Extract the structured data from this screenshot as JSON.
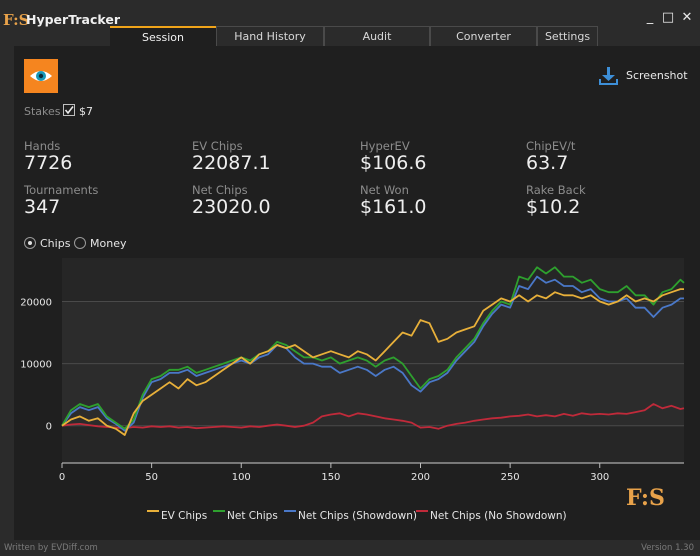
{
  "app": {
    "logo": "F:S",
    "title": "HyperTracker"
  },
  "window_controls": {
    "minimize": "_",
    "maximize": "□",
    "close": "✕"
  },
  "tabs": [
    {
      "label": "Session",
      "active": true
    },
    {
      "label": "Hand History",
      "active": false
    },
    {
      "label": "Audit",
      "active": false
    },
    {
      "label": "Converter",
      "active": false
    },
    {
      "label": "Settings",
      "active": false
    }
  ],
  "toolbar": {
    "eye_icon": "eye-icon",
    "screenshot_label": "Screenshot"
  },
  "stakes": {
    "label": "Stakes",
    "checked": true,
    "value": "$7"
  },
  "stats": {
    "hands": {
      "label": "Hands",
      "value": "7726"
    },
    "ev_chips": {
      "label": "EV Chips",
      "value": "22087.1"
    },
    "hyperev": {
      "label": "HyperEV",
      "value": "$106.6"
    },
    "chipev_t": {
      "label": "ChipEV/t",
      "value": "63.7"
    },
    "tournaments": {
      "label": "Tournaments",
      "value": "347"
    },
    "net_chips": {
      "label": "Net Chips",
      "value": "23020.0"
    },
    "net_won": {
      "label": "Net Won",
      "value": "$161.0"
    },
    "rake_back": {
      "label": "Rake Back",
      "value": "$10.2"
    }
  },
  "mode": {
    "chips_label": "Chips",
    "money_label": "Money",
    "selected": "Chips"
  },
  "colors": {
    "accent": "#f0a41a",
    "ev": "#e8b03a",
    "net": "#2ea02e",
    "showdown": "#4a78c8",
    "noshowdown": "#c02a3a"
  },
  "chart_data": {
    "type": "line",
    "x_range": [
      0,
      347
    ],
    "y_range": [
      -6000,
      27000
    ],
    "x_ticks": [
      {
        "value": 0,
        "label": "0"
      },
      {
        "value": 50,
        "label": "50"
      },
      {
        "value": 100,
        "label": "100"
      },
      {
        "value": 150,
        "label": "150"
      },
      {
        "value": 200,
        "label": "200"
      },
      {
        "value": 250,
        "label": "250"
      },
      {
        "value": 300,
        "label": "300"
      }
    ],
    "y_ticks": [
      {
        "value": 0,
        "label": "0"
      },
      {
        "value": 10000,
        "label": "10000"
      },
      {
        "value": 20000,
        "label": "20000"
      }
    ],
    "legend_position": "bottom",
    "x": [
      0,
      5,
      10,
      15,
      20,
      25,
      30,
      35,
      40,
      45,
      50,
      55,
      60,
      65,
      70,
      75,
      80,
      85,
      90,
      95,
      100,
      105,
      110,
      115,
      120,
      125,
      130,
      135,
      140,
      145,
      150,
      155,
      160,
      165,
      170,
      175,
      180,
      185,
      190,
      195,
      200,
      205,
      210,
      215,
      220,
      225,
      230,
      235,
      240,
      245,
      250,
      255,
      260,
      265,
      270,
      275,
      280,
      285,
      290,
      295,
      300,
      305,
      310,
      315,
      320,
      325,
      330,
      335,
      340,
      345,
      347
    ],
    "series": [
      {
        "name": "EV Chips",
        "color": "#e8b03a",
        "values": [
          0,
          1000,
          1500,
          800,
          1200,
          0,
          -500,
          -1500,
          2000,
          4000,
          5000,
          6000,
          7000,
          6000,
          7500,
          6500,
          7000,
          8000,
          9000,
          10000,
          11000,
          10000,
          11500,
          12000,
          13000,
          12500,
          13000,
          12000,
          11000,
          11500,
          12000,
          11500,
          11000,
          12000,
          11500,
          10500,
          12000,
          13500,
          15000,
          14500,
          17000,
          16500,
          13500,
          14000,
          15000,
          15500,
          16000,
          18500,
          19500,
          20500,
          20000,
          21000,
          20000,
          21000,
          20500,
          21500,
          21000,
          21000,
          20500,
          21000,
          20000,
          19500,
          20000,
          21000,
          20000,
          20500,
          20000,
          21000,
          21500,
          22000,
          22000
        ]
      },
      {
        "name": "Net Chips",
        "color": "#2ea02e",
        "values": [
          0,
          2500,
          3500,
          3000,
          3500,
          1500,
          500,
          -500,
          1000,
          5000,
          7500,
          8000,
          9000,
          9000,
          9500,
          8500,
          9000,
          9500,
          10000,
          10500,
          11000,
          10500,
          11500,
          12000,
          13500,
          13000,
          12000,
          11000,
          11000,
          10500,
          11000,
          10000,
          10500,
          11000,
          10500,
          9500,
          10500,
          11000,
          10000,
          8000,
          6000,
          7500,
          8000,
          9000,
          11000,
          12500,
          14000,
          16500,
          18500,
          20000,
          19500,
          24000,
          23500,
          25500,
          24500,
          25500,
          24000,
          24000,
          23000,
          23500,
          22000,
          21500,
          21500,
          22500,
          21000,
          21000,
          19500,
          21500,
          22000,
          23500,
          23000
        ]
      },
      {
        "name": "Net Chips (Showdown)",
        "color": "#4a78c8",
        "values": [
          0,
          2000,
          3000,
          2500,
          3000,
          1200,
          300,
          -800,
          500,
          4500,
          7000,
          7500,
          8500,
          8500,
          9000,
          8000,
          8500,
          9000,
          9500,
          10000,
          10500,
          10000,
          11000,
          11500,
          13000,
          12500,
          11000,
          10000,
          10000,
          9500,
          9500,
          8500,
          9000,
          9500,
          9000,
          8000,
          9000,
          9500,
          8500,
          6500,
          5500,
          7000,
          7500,
          8500,
          10500,
          12000,
          13500,
          16000,
          18000,
          19500,
          19000,
          22500,
          22000,
          24000,
          23000,
          23500,
          22500,
          22500,
          21500,
          22000,
          20500,
          20000,
          20000,
          20500,
          19000,
          19000,
          17500,
          19000,
          19500,
          20500,
          20500
        ]
      },
      {
        "name": "Net Chips (No Showdown)",
        "color": "#c02a3a",
        "values": [
          0,
          200,
          300,
          100,
          -100,
          -200,
          -300,
          -400,
          -200,
          -300,
          -100,
          -200,
          -100,
          -300,
          -200,
          -400,
          -300,
          -200,
          -100,
          -200,
          -300,
          -100,
          -200,
          0,
          200,
          0,
          -200,
          0,
          500,
          1500,
          1800,
          2000,
          1500,
          2000,
          1800,
          1500,
          1200,
          1000,
          800,
          500,
          -300,
          -200,
          -500,
          0,
          300,
          500,
          800,
          1000,
          1200,
          1300,
          1500,
          1600,
          1800,
          1500,
          1700,
          1500,
          1900,
          1600,
          2000,
          1800,
          1900,
          1800,
          2000,
          1900,
          2200,
          2500,
          3500,
          2800,
          3200,
          2700,
          2800
        ]
      }
    ]
  },
  "watermark": "F:S",
  "footer": {
    "left": "Written by EVDiff.com",
    "right": "Version 1.30"
  }
}
